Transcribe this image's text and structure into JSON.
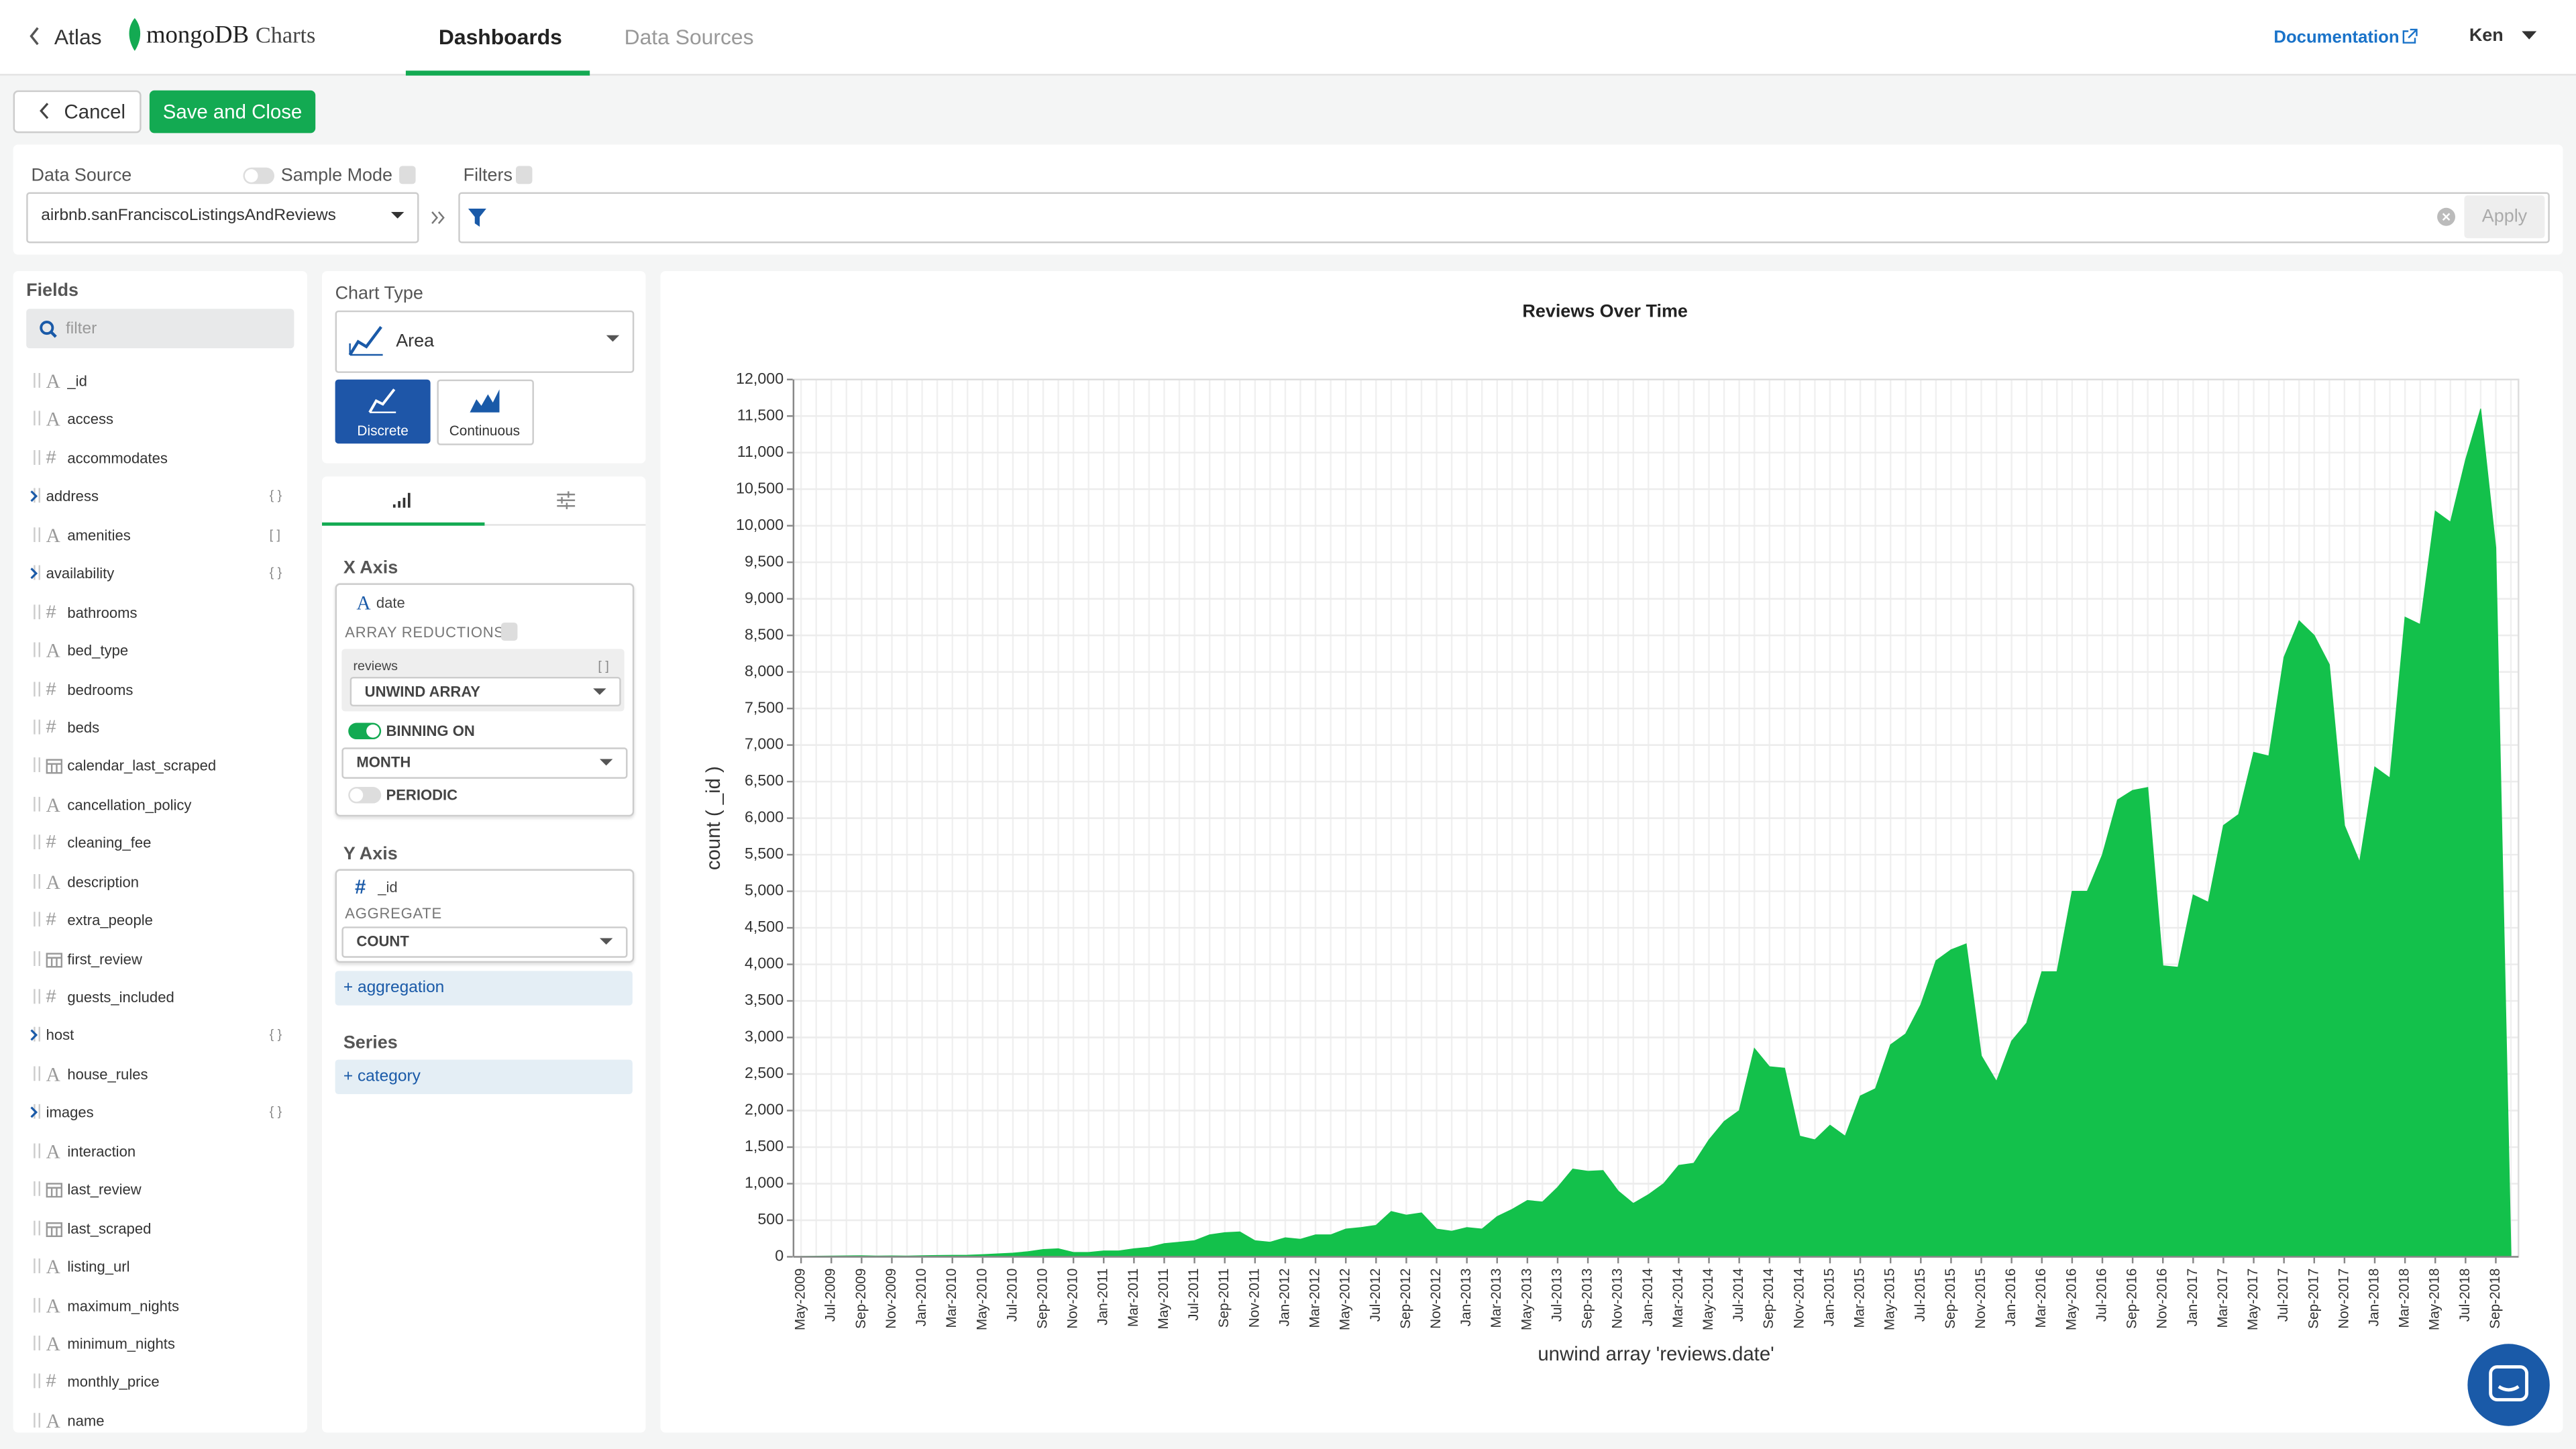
{
  "header": {
    "back": "Atlas",
    "brand": "mongoDB",
    "product": "Charts",
    "tabs": [
      "Dashboards",
      "Data Sources"
    ],
    "documentation": "Documentation",
    "user": "Ken"
  },
  "toolbar": {
    "cancel": "Cancel",
    "save": "Save and Close"
  },
  "data_source": {
    "label": "Data Source",
    "sample_mode": "Sample Mode",
    "value": "airbnb.sanFranciscoListingsAndReviews",
    "filters_label": "Filters",
    "apply": "Apply"
  },
  "fields": {
    "title": "Fields",
    "placeholder": "filter",
    "items": [
      {
        "icon": "A",
        "name": "_id"
      },
      {
        "icon": "A",
        "name": "access"
      },
      {
        "icon": "#",
        "name": "accommodates"
      },
      {
        "kind": "object",
        "name": "address",
        "suffix": "{ }"
      },
      {
        "icon": "A",
        "name": "amenities",
        "suffix": "[ ]"
      },
      {
        "kind": "object",
        "name": "availability",
        "suffix": "{ }"
      },
      {
        "icon": "#",
        "name": "bathrooms"
      },
      {
        "icon": "A",
        "name": "bed_type"
      },
      {
        "icon": "#",
        "name": "bedrooms"
      },
      {
        "icon": "#",
        "name": "beds"
      },
      {
        "kind": "date",
        "name": "calendar_last_scraped"
      },
      {
        "icon": "A",
        "name": "cancellation_policy"
      },
      {
        "icon": "#",
        "name": "cleaning_fee"
      },
      {
        "icon": "A",
        "name": "description"
      },
      {
        "icon": "#",
        "name": "extra_people"
      },
      {
        "kind": "date",
        "name": "first_review"
      },
      {
        "icon": "#",
        "name": "guests_included"
      },
      {
        "kind": "object",
        "name": "host",
        "suffix": "{ }"
      },
      {
        "icon": "A",
        "name": "house_rules"
      },
      {
        "kind": "object",
        "name": "images",
        "suffix": "{ }"
      },
      {
        "icon": "A",
        "name": "interaction"
      },
      {
        "kind": "date",
        "name": "last_review"
      },
      {
        "kind": "date",
        "name": "last_scraped"
      },
      {
        "icon": "A",
        "name": "listing_url"
      },
      {
        "icon": "A",
        "name": "maximum_nights"
      },
      {
        "icon": "A",
        "name": "minimum_nights"
      },
      {
        "icon": "#",
        "name": "monthly_price"
      },
      {
        "icon": "A",
        "name": "name"
      }
    ]
  },
  "chart_type": {
    "label": "Chart Type",
    "value": "Area",
    "options": [
      "Discrete",
      "Continuous"
    ]
  },
  "encode": {
    "x_axis": {
      "title": "X Axis",
      "field_icon": "A",
      "field": "date",
      "reductions_label": "ARRAY REDUCTIONS",
      "reduction_field": "reviews",
      "reduction_suffix": "[ ]",
      "reduction": "UNWIND ARRAY",
      "binning": "BINNING ON",
      "bin": "MONTH",
      "periodic": "PERIODIC"
    },
    "y_axis": {
      "title": "Y Axis",
      "field_icon": "#",
      "field": "_id",
      "aggregate_label": "AGGREGATE",
      "aggregate": "COUNT",
      "add": "+ aggregation"
    },
    "series": {
      "title": "Series",
      "add": "+ category"
    }
  },
  "chart_data": {
    "type": "area",
    "title": "Reviews Over Time",
    "xlabel": "unwind array 'reviews.date'",
    "ylabel": "count ( _id )",
    "color": "#13c14b",
    "grid": true,
    "categories": [
      "May-2009",
      null,
      "Jul-2009",
      null,
      "Sep-2009",
      null,
      "Nov-2009",
      null,
      "Jan-2010",
      null,
      "Mar-2010",
      null,
      "May-2010",
      null,
      "Jul-2010",
      null,
      "Sep-2010",
      null,
      "Nov-2010",
      null,
      "Jan-2011",
      null,
      "Mar-2011",
      null,
      "May-2011",
      null,
      "Jul-2011",
      null,
      "Sep-2011",
      null,
      "Nov-2011",
      null,
      "Jan-2012",
      null,
      "Mar-2012",
      null,
      "May-2012",
      null,
      "Jul-2012",
      null,
      "Sep-2012",
      null,
      "Nov-2012",
      null,
      "Jan-2013",
      null,
      "Mar-2013",
      null,
      "May-2013",
      null,
      "Jul-2013",
      null,
      "Sep-2013",
      null,
      "Nov-2013",
      null,
      "Jan-2014",
      null,
      "Mar-2014",
      null,
      "May-2014",
      null,
      "Jul-2014",
      null,
      "Sep-2014",
      null,
      "Nov-2014",
      null,
      "Jan-2015",
      null,
      "Mar-2015",
      null,
      "May-2015",
      null,
      "Jul-2015",
      null,
      "Sep-2015",
      null,
      "Nov-2015",
      null,
      "Jan-2016",
      null,
      "Mar-2016",
      null,
      "May-2016",
      null,
      "Jul-2016",
      null,
      "Sep-2016",
      null,
      "Nov-2016",
      null,
      "Jan-2017",
      null,
      "Mar-2017",
      null,
      "May-2017",
      null,
      "Jul-2017",
      null,
      "Sep-2017",
      null,
      "Nov-2017",
      null,
      "Jan-2018",
      null,
      "Mar-2018",
      null,
      "May-2018",
      null,
      "Jul-2018",
      null,
      "Sep-2018",
      null
    ],
    "values": [
      5,
      8,
      10,
      12,
      15,
      10,
      12,
      10,
      15,
      18,
      20,
      22,
      30,
      40,
      50,
      70,
      100,
      110,
      60,
      60,
      80,
      80,
      110,
      130,
      180,
      200,
      220,
      300,
      330,
      340,
      220,
      200,
      260,
      240,
      300,
      300,
      380,
      400,
      430,
      620,
      570,
      600,
      380,
      350,
      400,
      380,
      550,
      650,
      770,
      750,
      950,
      1200,
      1170,
      1180,
      900,
      730,
      850,
      1000,
      1250,
      1280,
      1600,
      1850,
      2000,
      2850,
      2600,
      2580,
      1650,
      1600,
      1800,
      1650,
      2200,
      2300,
      2900,
      3050,
      3450,
      4050,
      4200,
      4280,
      2750,
      2400,
      2950,
      3200,
      3900,
      3900,
      5000,
      5000,
      5500,
      6250,
      6380,
      6420,
      3980,
      3960,
      4950,
      4850,
      5900,
      6050,
      6900,
      6850,
      8200,
      8700,
      8500,
      8100,
      5900,
      5400,
      6700,
      6550,
      8750,
      8650,
      10200,
      10050,
      10900,
      11600,
      9700,
      50
    ],
    "ylim": [
      0,
      12000
    ],
    "yticks": [
      0,
      500,
      {
        "value": 1000,
        "label": "1,000"
      },
      {
        "value": 1500,
        "label": "1,500"
      },
      {
        "value": 2000,
        "label": "2,000"
      },
      {
        "value": 2500,
        "label": "2,500"
      },
      {
        "value": 3000,
        "label": "3,000"
      },
      {
        "value": 3500,
        "label": "3,500"
      },
      {
        "value": 4000,
        "label": "4,000"
      },
      {
        "value": 4500,
        "label": "4,500"
      },
      {
        "value": 5000,
        "label": "5,000"
      },
      {
        "value": 5500,
        "label": "5,500"
      },
      {
        "value": 6000,
        "label": "6,000"
      },
      {
        "value": 6500,
        "label": "6,500"
      },
      {
        "value": 7000,
        "label": "7,000"
      },
      {
        "value": 7500,
        "label": "7,500"
      },
      {
        "value": 8000,
        "label": "8,000"
      },
      {
        "value": 8500,
        "label": "8,500"
      },
      {
        "value": 9000,
        "label": "9,000"
      },
      {
        "value": 9500,
        "label": "9,500"
      },
      {
        "value": 10000,
        "label": "10,000"
      },
      {
        "value": 10500,
        "label": "10,500"
      },
      {
        "value": 11000,
        "label": "11,000"
      },
      {
        "value": 11500,
        "label": "11,500"
      },
      {
        "value": 12000,
        "label": "12,000"
      }
    ]
  }
}
